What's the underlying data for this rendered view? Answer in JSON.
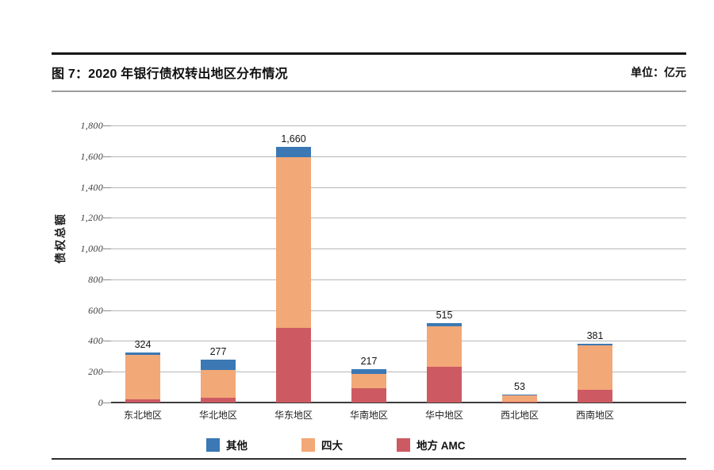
{
  "figure": {
    "title": "图 7：2020 年银行债权转出地区分布情况",
    "unit": "单位：亿元"
  },
  "chart_data": {
    "type": "bar",
    "subtype": "stacked",
    "title": "图 7：2020 年银行债权转出地区分布情况",
    "unit": "单位：亿元",
    "xlabel": "",
    "ylabel": "债权总额",
    "categories": [
      "东北地区",
      "华北地区",
      "华东地区",
      "华南地区",
      "华中地区",
      "西北地区",
      "西南地区"
    ],
    "series": [
      {
        "name": "地方 AMC",
        "color": "#cd5a63",
        "values": [
          20,
          30,
          485,
          95,
          230,
          3,
          80
        ]
      },
      {
        "name": "四大",
        "color": "#f2a877",
        "values": [
          289,
          180,
          1110,
          90,
          267,
          47,
          291
        ]
      },
      {
        "name": "其他",
        "color": "#3b78b4",
        "values": [
          15,
          67,
          65,
          32,
          18,
          3,
          10
        ]
      }
    ],
    "totals": [
      324,
      277,
      1660,
      217,
      515,
      53,
      381
    ],
    "total_labels": [
      "324",
      "277",
      "1,660",
      "217",
      "515",
      "53",
      "381"
    ],
    "legend": [
      {
        "label": "其他",
        "color": "#3b78b4"
      },
      {
        "label": "四大",
        "color": "#f2a877"
      },
      {
        "label": "地方 AMC",
        "color": "#cd5a63"
      }
    ],
    "legend_position": "bottom",
    "grid": true,
    "y_axis": {
      "min": 0,
      "max": 1800,
      "step": 200,
      "tick_labels": [
        "0",
        "200",
        "400",
        "600",
        "800",
        "1,000",
        "1,200",
        "1,400",
        "1,600",
        "1,800"
      ]
    },
    "colors": {
      "gridline": "#b7b7b7",
      "axis_line": "#3c3c3c",
      "blue": "#3b78b4",
      "orange": "#f2a877",
      "red": "#cd5a63"
    }
  }
}
